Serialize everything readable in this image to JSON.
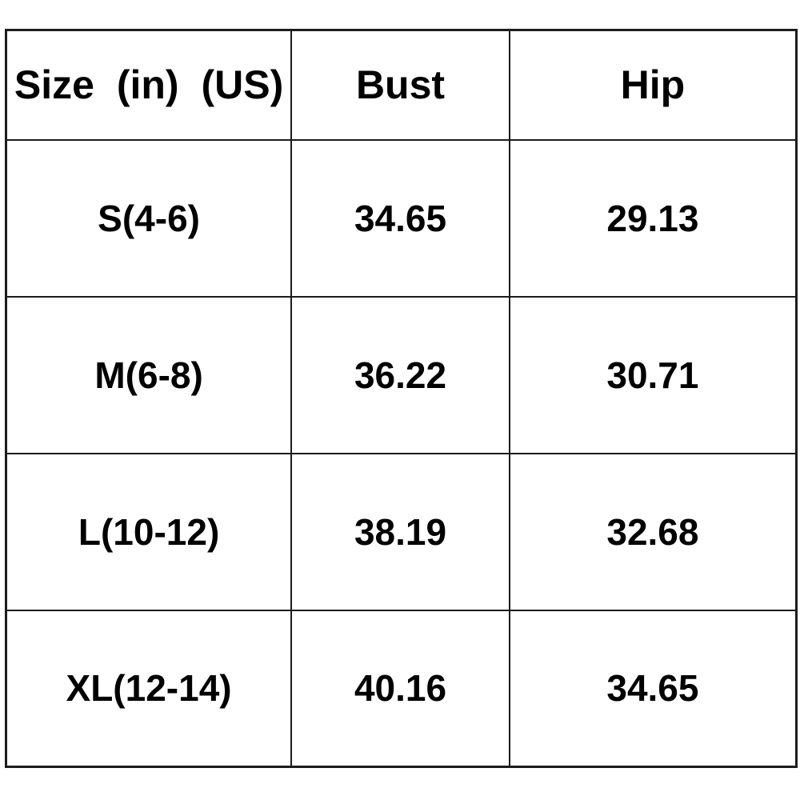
{
  "table": {
    "columns": [
      {
        "label": "Size (in) (US)"
      },
      {
        "label": "Bust"
      },
      {
        "label": "Hip"
      }
    ],
    "rows": [
      {
        "size": "S(4-6)",
        "bust": "34.65",
        "hip": "29.13"
      },
      {
        "size": "M(6-8)",
        "bust": "36.22",
        "hip": "30.71"
      },
      {
        "size": "L(10-12)",
        "bust": "38.19",
        "hip": "32.68"
      },
      {
        "size": "XL(12-14)",
        "bust": "40.16",
        "hip": "34.65"
      }
    ],
    "colors": {
      "border": "#1c1c1c",
      "background": "#ffffff",
      "text": "#000000"
    }
  }
}
